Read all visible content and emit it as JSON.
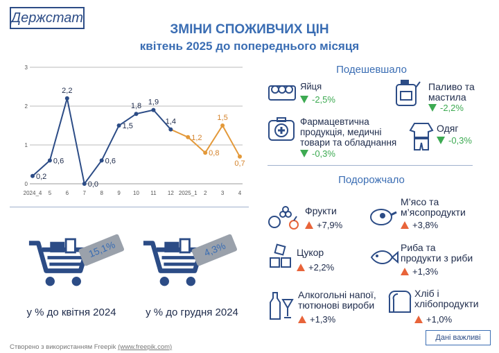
{
  "header": {
    "logo": "Держстат",
    "title": "ЗМІНИ СПОЖИВЧИХ ЦІН",
    "subtitle": "квітень 2025 до попереднього місяця"
  },
  "chart_data": {
    "type": "line",
    "categories": [
      "2024_4",
      "5",
      "6",
      "7",
      "8",
      "9",
      "10",
      "11",
      "12",
      "2025_1",
      "2",
      "3",
      "4"
    ],
    "series": [
      {
        "name": null,
        "color": "#2c4c86",
        "values": [
          0.2,
          0.6,
          2.2,
          0.0,
          0.6,
          1.5,
          1.8,
          1.9,
          1.4,
          null,
          null,
          null,
          null
        ],
        "value_labels": [
          "0,2",
          "0,6",
          "2,2",
          "0,0",
          "0,6",
          "1,5",
          "1,8",
          "1,9",
          "1,4",
          null,
          null,
          null,
          null
        ]
      },
      {
        "name": null,
        "color": "#e3993a",
        "values": [
          null,
          null,
          null,
          null,
          null,
          null,
          null,
          null,
          null,
          1.2,
          0.8,
          1.5,
          0.7
        ],
        "value_labels": [
          null,
          null,
          null,
          null,
          null,
          null,
          null,
          null,
          null,
          "1,2",
          "0,8",
          "1,5",
          "0,7"
        ]
      }
    ],
    "ylim": [
      0,
      3
    ],
    "yticks": [
      0,
      1,
      2,
      3
    ],
    "grid": true
  },
  "yearly": [
    {
      "value": "15,1%",
      "label": "у % до квітня 2024"
    },
    {
      "value": "4,3%",
      "label": "у % до грудня 2024"
    }
  ],
  "cheaper": {
    "title": "Подешевшало",
    "items": [
      {
        "label": "Яйця",
        "value": "-2,5%"
      },
      {
        "label": "Паливо та мастила",
        "value": "-2,2%"
      },
      {
        "label": "Фармацевтична продукція, медичні товари та обладнання",
        "value": "-0,3%"
      },
      {
        "label": "Одяг",
        "value": "-0,3%"
      }
    ]
  },
  "pricier": {
    "title": "Подорожчало",
    "items": [
      {
        "label": "Фрукти",
        "value": "+7,9%"
      },
      {
        "label": "М’ясо та м’ясопродукти",
        "value": "+3,8%"
      },
      {
        "label": "Цукор",
        "value": "+2,2%"
      },
      {
        "label": "Риба та продукти з риби",
        "value": "+1,3%"
      },
      {
        "label": "Алкогольні напої, тютюнові вироби",
        "value": "+1,3%"
      },
      {
        "label": "Хліб і хлібопродукти",
        "value": "+1,0%"
      }
    ]
  },
  "footer": {
    "credit": "Створено з використанням Freepik",
    "link": "(www.freepik.com)",
    "button": "Дані важливі"
  }
}
